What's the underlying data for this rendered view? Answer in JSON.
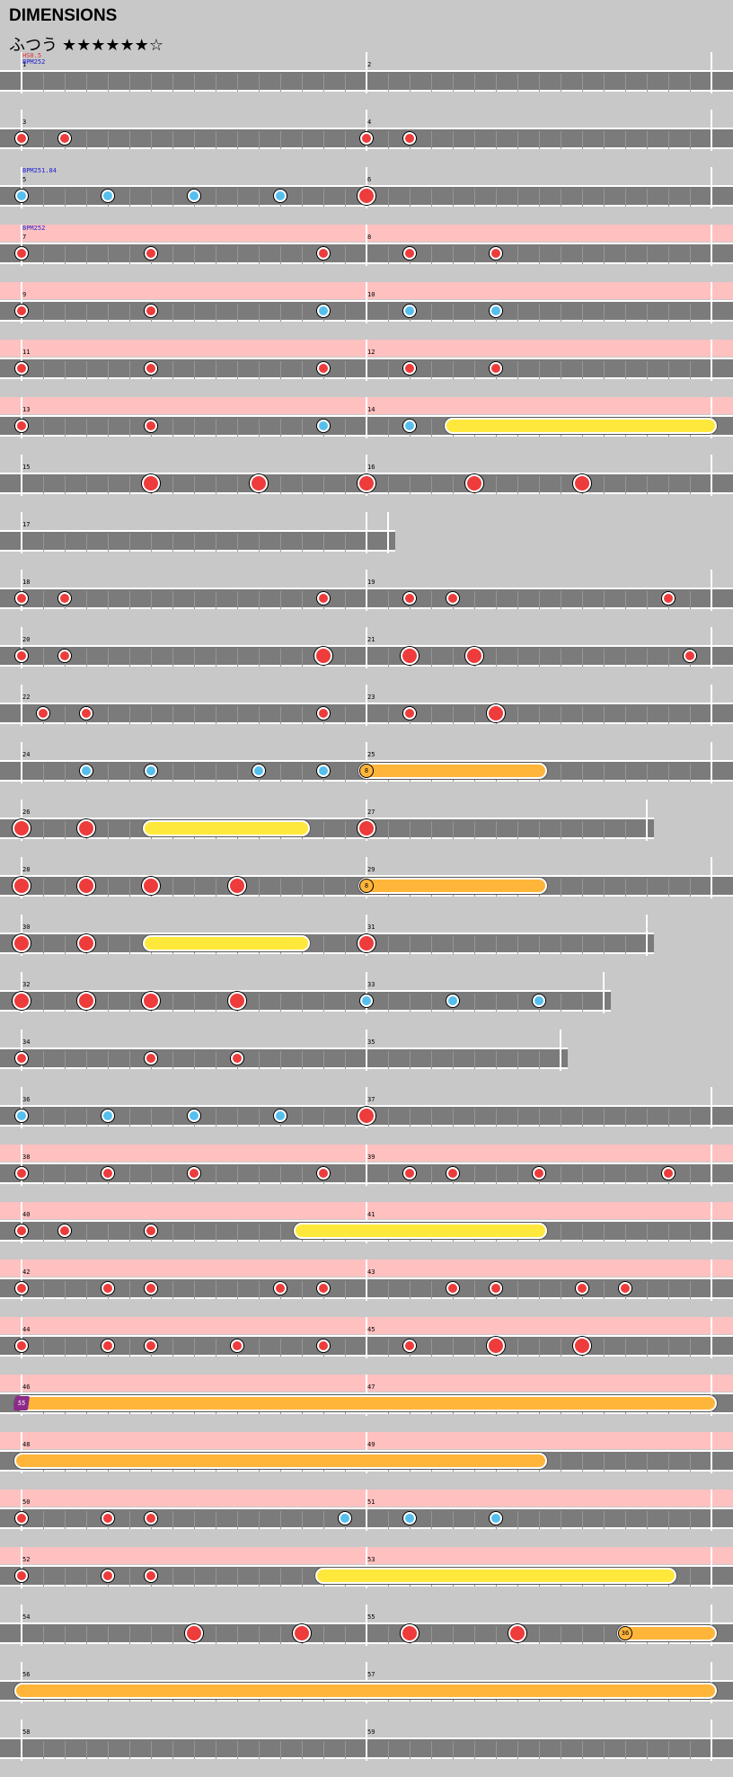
{
  "title": "DIMENSIONS",
  "difficulty": "ふつう ★★★★★★☆",
  "rows": [
    {
      "m": [
        1,
        2
      ],
      "bars": 2,
      "events": [
        {
          "t": "HS0.5",
          "c": "#e03030",
          "line": 0
        },
        {
          "t": "BPM252",
          "c": "#2020d0",
          "line": 1
        }
      ],
      "notes": []
    },
    {
      "m": [
        3,
        4
      ],
      "bars": 2,
      "notes": [
        {
          "p": 0,
          "k": "d"
        },
        {
          "p": 0.125,
          "k": "d"
        },
        {
          "p": 1,
          "k": "d"
        },
        {
          "p": 1.125,
          "k": "d"
        }
      ]
    },
    {
      "m": [
        5,
        6
      ],
      "bars": 2,
      "events": [
        {
          "t": "BPM251.84",
          "c": "#2020d0",
          "line": 0
        }
      ],
      "notes": [
        {
          "p": 0,
          "k": "k"
        },
        {
          "p": 0.25,
          "k": "k"
        },
        {
          "p": 0.5,
          "k": "k"
        },
        {
          "p": 0.75,
          "k": "k"
        },
        {
          "p": 1,
          "k": "D"
        }
      ]
    },
    {
      "m": [
        7,
        8
      ],
      "bars": 2,
      "gogo": [
        0,
        2
      ],
      "events": [
        {
          "t": "BPM252",
          "c": "#2020d0",
          "line": 0
        }
      ],
      "notes": [
        {
          "p": 0,
          "k": "d"
        },
        {
          "p": 0.375,
          "k": "d"
        },
        {
          "p": 0.875,
          "k": "d"
        },
        {
          "p": 1.125,
          "k": "d"
        },
        {
          "p": 1.375,
          "k": "d"
        }
      ]
    },
    {
      "m": [
        9,
        10
      ],
      "bars": 2,
      "gogo": [
        0,
        2
      ],
      "notes": [
        {
          "p": 0,
          "k": "d"
        },
        {
          "p": 0.375,
          "k": "d"
        },
        {
          "p": 0.875,
          "k": "k"
        },
        {
          "p": 1.125,
          "k": "k"
        },
        {
          "p": 1.375,
          "k": "k"
        }
      ]
    },
    {
      "m": [
        11,
        12
      ],
      "bars": 2,
      "gogo": [
        0,
        2
      ],
      "notes": [
        {
          "p": 0,
          "k": "d"
        },
        {
          "p": 0.375,
          "k": "d"
        },
        {
          "p": 0.875,
          "k": "d"
        },
        {
          "p": 1.125,
          "k": "d"
        },
        {
          "p": 1.375,
          "k": "d"
        }
      ]
    },
    {
      "m": [
        13,
        14
      ],
      "bars": 2,
      "gogo": [
        0,
        2
      ],
      "notes": [
        {
          "p": 0,
          "k": "d"
        },
        {
          "p": 0.375,
          "k": "d"
        },
        {
          "p": 0.875,
          "k": "k"
        },
        {
          "p": 1.125,
          "k": "k"
        }
      ],
      "rolls": [
        {
          "s": 1.25,
          "e": 2.0,
          "k": "R"
        }
      ]
    },
    {
      "m": [
        15,
        16
      ],
      "bars": 2,
      "notes": [
        {
          "p": 0.375,
          "k": "D"
        },
        {
          "p": 0.6875,
          "k": "D"
        },
        {
          "p": 1,
          "k": "D"
        },
        {
          "p": 1.3125,
          "k": "D"
        },
        {
          "p": 1.625,
          "k": "D"
        }
      ]
    },
    {
      "m": [
        17
      ],
      "bars": 1.0625,
      "notes": []
    },
    {
      "m": [
        18,
        19
      ],
      "bars": 2,
      "notes": [
        {
          "p": 0,
          "k": "d"
        },
        {
          "p": 0.125,
          "k": "d"
        },
        {
          "p": 0.875,
          "k": "d"
        },
        {
          "p": 1.125,
          "k": "d"
        },
        {
          "p": 1.25,
          "k": "d"
        },
        {
          "p": 1.875,
          "k": "d"
        }
      ]
    },
    {
      "m": [
        20,
        21
      ],
      "bars": 2,
      "notes": [
        {
          "p": 0,
          "k": "d"
        },
        {
          "p": 0.125,
          "k": "d"
        },
        {
          "p": 0.875,
          "k": "D"
        },
        {
          "p": 1.125,
          "k": "D"
        },
        {
          "p": 1.3125,
          "k": "D"
        },
        {
          "p": 1.9375,
          "k": "d"
        }
      ]
    },
    {
      "m": [
        22,
        23
      ],
      "bars": 2,
      "notes": [
        {
          "p": 0.0625,
          "k": "d"
        },
        {
          "p": 0.1875,
          "k": "d"
        },
        {
          "p": 0.875,
          "k": "d"
        },
        {
          "p": 1.125,
          "k": "d"
        },
        {
          "p": 1.375,
          "k": "D"
        }
      ]
    },
    {
      "m": [
        24,
        25
      ],
      "bars": 2,
      "notes": [
        {
          "p": 0.1875,
          "k": "k"
        },
        {
          "p": 0.375,
          "k": "k"
        },
        {
          "p": 0.6875,
          "k": "k"
        },
        {
          "p": 0.875,
          "k": "k"
        }
      ],
      "rolls": [
        {
          "s": 1.0,
          "e": 1.5,
          "k": "Y",
          "tag": "8"
        }
      ]
    },
    {
      "m": [
        26,
        27
      ],
      "bars": 1.8125,
      "notes": [
        {
          "p": 0,
          "k": "D"
        },
        {
          "p": 0.1875,
          "k": "D"
        },
        {
          "p": 1,
          "k": "D"
        }
      ],
      "rolls": [
        {
          "s": 0.375,
          "e": 0.8125,
          "k": "R"
        }
      ]
    },
    {
      "m": [
        28,
        29
      ],
      "bars": 2,
      "notes": [
        {
          "p": 0,
          "k": "D"
        },
        {
          "p": 0.1875,
          "k": "D"
        },
        {
          "p": 0.375,
          "k": "D"
        },
        {
          "p": 0.625,
          "k": "D"
        }
      ],
      "rolls": [
        {
          "s": 1.0,
          "e": 1.5,
          "k": "Y",
          "tag": "8"
        }
      ]
    },
    {
      "m": [
        30,
        31
      ],
      "bars": 1.8125,
      "notes": [
        {
          "p": 0,
          "k": "D"
        },
        {
          "p": 0.1875,
          "k": "D"
        },
        {
          "p": 1,
          "k": "D"
        }
      ],
      "rolls": [
        {
          "s": 0.375,
          "e": 0.8125,
          "k": "R"
        }
      ]
    },
    {
      "m": [
        32,
        33
      ],
      "bars": 1.6875,
      "notes": [
        {
          "p": 0,
          "k": "D"
        },
        {
          "p": 0.1875,
          "k": "D"
        },
        {
          "p": 0.375,
          "k": "D"
        },
        {
          "p": 0.625,
          "k": "D"
        },
        {
          "p": 1,
          "k": "k"
        },
        {
          "p": 1.25,
          "k": "k"
        },
        {
          "p": 1.5,
          "k": "k"
        }
      ]
    },
    {
      "m": [
        34,
        35
      ],
      "bars": 1.5625,
      "notes": [
        {
          "p": 0,
          "k": "d"
        },
        {
          "p": 0.375,
          "k": "d"
        },
        {
          "p": 0.625,
          "k": "d"
        }
      ]
    },
    {
      "m": [
        36,
        37
      ],
      "bars": 2,
      "notes": [
        {
          "p": 0,
          "k": "k"
        },
        {
          "p": 0.25,
          "k": "k"
        },
        {
          "p": 0.5,
          "k": "k"
        },
        {
          "p": 0.75,
          "k": "k"
        },
        {
          "p": 1,
          "k": "D"
        }
      ]
    },
    {
      "m": [
        38,
        39
      ],
      "bars": 2,
      "gogo": [
        0,
        2
      ],
      "notes": [
        {
          "p": 0,
          "k": "d"
        },
        {
          "p": 0.25,
          "k": "d"
        },
        {
          "p": 0.5,
          "k": "d"
        },
        {
          "p": 0.875,
          "k": "d"
        },
        {
          "p": 1.125,
          "k": "d"
        },
        {
          "p": 1.25,
          "k": "d"
        },
        {
          "p": 1.5,
          "k": "d"
        },
        {
          "p": 1.875,
          "k": "d"
        }
      ]
    },
    {
      "m": [
        40,
        41
      ],
      "bars": 2,
      "gogo": [
        0,
        2
      ],
      "notes": [
        {
          "p": 0,
          "k": "d"
        },
        {
          "p": 0.125,
          "k": "d"
        },
        {
          "p": 0.375,
          "k": "d"
        }
      ],
      "rolls": [
        {
          "s": 0.8125,
          "e": 1.5,
          "k": "R"
        }
      ]
    },
    {
      "m": [
        42,
        43
      ],
      "bars": 2,
      "gogo": [
        0,
        2
      ],
      "notes": [
        {
          "p": 0,
          "k": "d"
        },
        {
          "p": 0.25,
          "k": "d"
        },
        {
          "p": 0.375,
          "k": "d"
        },
        {
          "p": 0.75,
          "k": "d"
        },
        {
          "p": 0.875,
          "k": "d"
        },
        {
          "p": 1.25,
          "k": "d"
        },
        {
          "p": 1.375,
          "k": "d"
        },
        {
          "p": 1.625,
          "k": "d"
        },
        {
          "p": 1.75,
          "k": "d"
        }
      ]
    },
    {
      "m": [
        44,
        45
      ],
      "bars": 2,
      "gogo": [
        0,
        2
      ],
      "notes": [
        {
          "p": 0,
          "k": "d"
        },
        {
          "p": 0.25,
          "k": "d"
        },
        {
          "p": 0.375,
          "k": "d"
        },
        {
          "p": 0.625,
          "k": "d"
        },
        {
          "p": 0.875,
          "k": "d"
        },
        {
          "p": 1.125,
          "k": "d"
        },
        {
          "p": 1.375,
          "k": "D"
        },
        {
          "p": 1.625,
          "k": "D"
        }
      ]
    },
    {
      "m": [
        46,
        47
      ],
      "bars": 2,
      "gogo": [
        0,
        2
      ],
      "notes": [],
      "rolls": [
        {
          "s": 0.0,
          "e": 2.0,
          "k": "Y",
          "tag": "55",
          "tagStyle": "p"
        }
      ]
    },
    {
      "m": [
        48,
        49
      ],
      "bars": 2,
      "gogo": [
        0,
        2
      ],
      "notes": [],
      "rolls": [
        {
          "s": 0.0,
          "e": 1.5,
          "k": "Y"
        }
      ]
    },
    {
      "m": [
        50,
        51
      ],
      "bars": 2,
      "gogo": [
        0,
        2
      ],
      "notes": [
        {
          "p": 0,
          "k": "d"
        },
        {
          "p": 0.25,
          "k": "d"
        },
        {
          "p": 0.375,
          "k": "d"
        },
        {
          "p": 0.9375,
          "k": "k"
        },
        {
          "p": 1.125,
          "k": "k"
        },
        {
          "p": 1.375,
          "k": "k"
        }
      ]
    },
    {
      "m": [
        52,
        53
      ],
      "bars": 2,
      "gogo": [
        0,
        2
      ],
      "notes": [
        {
          "p": 0,
          "k": "d"
        },
        {
          "p": 0.25,
          "k": "d"
        },
        {
          "p": 0.375,
          "k": "d"
        }
      ],
      "rolls": [
        {
          "s": 0.875,
          "e": 1.875,
          "k": "R"
        }
      ]
    },
    {
      "m": [
        54,
        55
      ],
      "bars": 2,
      "notes": [
        {
          "p": 0.5,
          "k": "D"
        },
        {
          "p": 0.8125,
          "k": "D"
        },
        {
          "p": 1.125,
          "k": "D"
        },
        {
          "p": 1.4375,
          "k": "D"
        }
      ],
      "rolls": [
        {
          "s": 1.75,
          "e": 2.0,
          "k": "Y",
          "tag": "36"
        }
      ]
    },
    {
      "m": [
        56,
        57
      ],
      "bars": 2,
      "notes": [],
      "rolls": [
        {
          "s": 0.0,
          "e": 2.0,
          "k": "Y"
        }
      ]
    },
    {
      "m": [
        58,
        59
      ],
      "bars": 2,
      "notes": []
    }
  ]
}
